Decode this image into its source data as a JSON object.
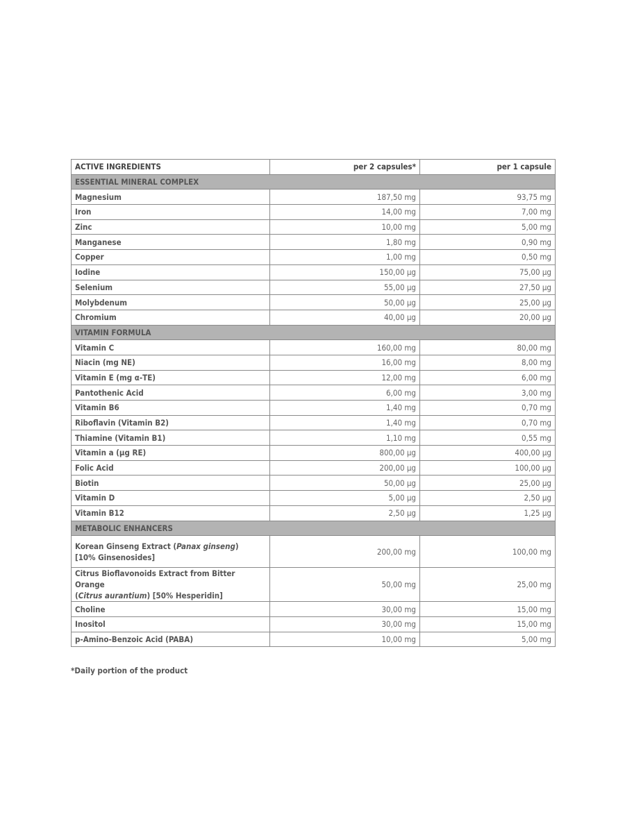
{
  "table": {
    "headers": [
      "ACTIVE INGREDIENTS",
      "per 2 capsules*",
      "per 1 capsule"
    ],
    "sections": [
      {
        "title": "ESSENTIAL MINERAL COMPLEX",
        "rows": [
          {
            "name": [
              {
                "t": "Magnesium"
              }
            ],
            "per2": "187,50 mg",
            "per1": "93,75 mg"
          },
          {
            "name": [
              {
                "t": "Iron"
              }
            ],
            "per2": "14,00 mg",
            "per1": "7,00 mg"
          },
          {
            "name": [
              {
                "t": "Zinc"
              }
            ],
            "per2": "10,00 mg",
            "per1": "5,00 mg"
          },
          {
            "name": [
              {
                "t": "Manganese"
              }
            ],
            "per2": "1,80 mg",
            "per1": "0,90 mg"
          },
          {
            "name": [
              {
                "t": "Copper"
              }
            ],
            "per2": "1,00 mg",
            "per1": "0,50 mg"
          },
          {
            "name": [
              {
                "t": "Iodine"
              }
            ],
            "per2": "150,00 µg",
            "per1": "75,00 µg"
          },
          {
            "name": [
              {
                "t": "Selenium"
              }
            ],
            "per2": "55,00 µg",
            "per1": "27,50 µg"
          },
          {
            "name": [
              {
                "t": "Molybdenum"
              }
            ],
            "per2": "50,00 µg",
            "per1": "25,00 µg"
          },
          {
            "name": [
              {
                "t": "Chromium"
              }
            ],
            "per2": "40,00 µg",
            "per1": "20,00 µg"
          }
        ]
      },
      {
        "title": "VITAMIN FORMULA",
        "rows": [
          {
            "name": [
              {
                "t": "Vitamin C"
              }
            ],
            "per2": "160,00 mg",
            "per1": "80,00 mg"
          },
          {
            "name": [
              {
                "t": "Niacin (mg NE)"
              }
            ],
            "per2": "16,00 mg",
            "per1": "8,00 mg"
          },
          {
            "name": [
              {
                "t": "Vitamin E (mg α-TE)"
              }
            ],
            "per2": "12,00 mg",
            "per1": "6,00 mg"
          },
          {
            "name": [
              {
                "t": "Pantothenic Acid"
              }
            ],
            "per2": "6,00 mg",
            "per1": "3,00 mg"
          },
          {
            "name": [
              {
                "t": "Vitamin B6"
              }
            ],
            "per2": "1,40 mg",
            "per1": "0,70 mg"
          },
          {
            "name": [
              {
                "t": "Riboflavin (Vitamin B2)"
              }
            ],
            "per2": "1,40 mg",
            "per1": "0,70 mg"
          },
          {
            "name": [
              {
                "t": "Thiamine (Vitamin B1)"
              }
            ],
            "per2": "1,10 mg",
            "per1": "0,55 mg"
          },
          {
            "name": [
              {
                "t": "Vitamin a (µg RE)"
              }
            ],
            "per2": "800,00 µg",
            "per1": "400,00 µg"
          },
          {
            "name": [
              {
                "t": "Folic Acid"
              }
            ],
            "per2": "200,00 µg",
            "per1": "100,00 µg"
          },
          {
            "name": [
              {
                "t": "Biotin"
              }
            ],
            "per2": "50,00 µg",
            "per1": "25,00 µg"
          },
          {
            "name": [
              {
                "t": "Vitamin D"
              }
            ],
            "per2": "5,00 µg",
            "per1": "2,50 µg"
          },
          {
            "name": [
              {
                "t": "Vitamin B12"
              }
            ],
            "per2": "2,50 µg",
            "per1": "1,25 µg"
          }
        ]
      },
      {
        "title": "METABOLIC ENHANCERS",
        "rows": [
          {
            "name": [
              {
                "t": "Korean Ginseng Extract ("
              },
              {
                "t": "Panax ginseng",
                "i": true
              },
              {
                "t": ")"
              },
              {
                "br": true
              },
              {
                "t": "[10% Ginsenosides]"
              }
            ],
            "per2": "200,00 mg",
            "per1": "100,00 mg",
            "tall": true
          },
          {
            "name": [
              {
                "t": "Citrus Bioflavonoids Extract from Bitter Orange"
              },
              {
                "br": true
              },
              {
                "t": "("
              },
              {
                "t": "Citrus aurantium",
                "i": true
              },
              {
                "t": ") [50% Hesperidin]"
              }
            ],
            "per2": "50,00 mg",
            "per1": "25,00 mg",
            "tall": true
          },
          {
            "name": [
              {
                "t": "Choline"
              }
            ],
            "per2": "30,00 mg",
            "per1": "15,00 mg"
          },
          {
            "name": [
              {
                "t": "Inositol"
              }
            ],
            "per2": "30,00 mg",
            "per1": "15,00 mg"
          },
          {
            "name": [
              {
                "t": "p-Amino-Benzoic Acid (PABA)"
              }
            ],
            "per2": "10,00 mg",
            "per1": "5,00 mg"
          }
        ]
      }
    ]
  },
  "footnote": "*Daily portion of the product",
  "colors": {
    "section_bg": "#b3b3b3",
    "border": "#8a8a8a",
    "text": "#555555"
  }
}
